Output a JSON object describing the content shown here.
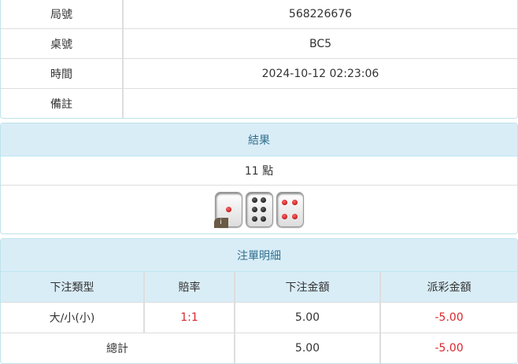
{
  "info": [
    {
      "label": "局號",
      "value": "568226676"
    },
    {
      "label": "桌號",
      "value": "BC5"
    },
    {
      "label": "時間",
      "value": "2024-10-12 02:23:06"
    },
    {
      "label": "備註",
      "value": ""
    }
  ],
  "result": {
    "title": "結果",
    "points": "11 點",
    "dice": [
      1,
      6,
      4
    ],
    "info_badge": "i"
  },
  "bets": {
    "title": "注單明細",
    "headers": [
      "下注類型",
      "賠率",
      "下注金額",
      "派彩金額"
    ],
    "rows": [
      {
        "type": "大/小(小)",
        "odds": "1:1",
        "amount": "5.00",
        "payout": "-5.00"
      }
    ],
    "total": {
      "label": "總計",
      "amount": "5.00",
      "payout": "-5.00"
    }
  },
  "colors": {
    "header_bg": "#d9edf7",
    "header_text": "#31708f",
    "negative": "#d9262d"
  }
}
